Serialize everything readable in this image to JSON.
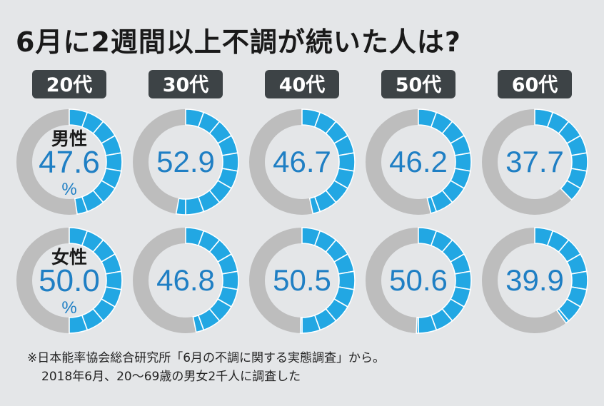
{
  "title": "6月に2週間以上不調が続いた人は?",
  "unit": "%",
  "colors": {
    "accent": "#22a7e3",
    "track": "#bdbdbd",
    "label_bg": "#3d4346",
    "value_text": "#1f7fc4"
  },
  "note": {
    "line1": "※日本能率協会総合研究所「6月の不調に関する実態調査」から。",
    "line2": "2018年6月、20〜69歳の男女2千人に調査した"
  },
  "chart_data": {
    "type": "pie",
    "title": "6月に2週間以上不調が続いた人は?",
    "categories": [
      "20代",
      "30代",
      "40代",
      "50代",
      "60代"
    ],
    "unit": "%",
    "series": [
      {
        "name": "男性",
        "values": [
          47.6,
          52.9,
          46.7,
          46.2,
          37.7
        ]
      },
      {
        "name": "女性",
        "values": [
          50.0,
          46.8,
          50.5,
          50.6,
          39.9
        ]
      }
    ]
  }
}
